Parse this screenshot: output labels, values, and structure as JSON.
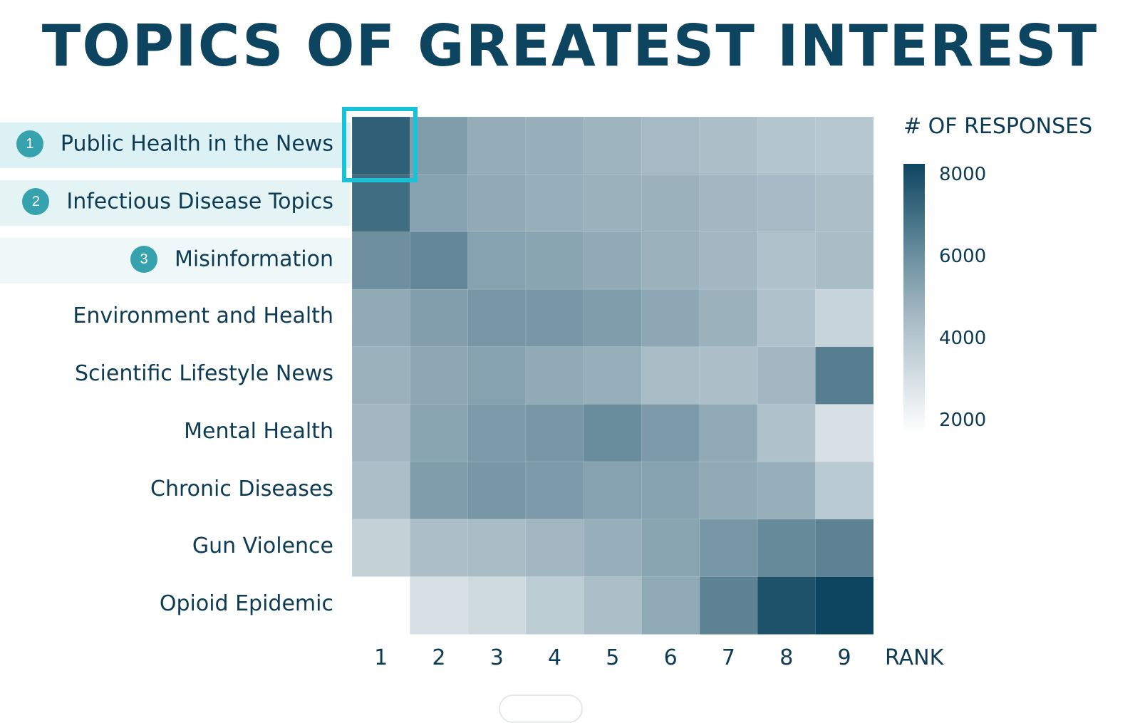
{
  "title": "TOPICS OF GREATEST INTEREST",
  "legend": {
    "title": "# OF RESPONSES",
    "ticks": [
      "8000",
      "6000",
      "4000",
      "2000"
    ],
    "range": [
      1500,
      8500
    ],
    "colors": [
      "#ffffff",
      "#0d4560"
    ]
  },
  "highlight_color": "#19c2d6",
  "badge_color": "#35a2ad",
  "band_colors": [
    "#dcf1f3",
    "#e4f4f5",
    "#eef8f9"
  ],
  "chart_data": {
    "type": "heatmap",
    "title": "TOPICS OF GREATEST INTEREST",
    "xlabel": "RANK",
    "ylabel": "",
    "colorbar_label": "# OF RESPONSES",
    "x": [
      "1",
      "2",
      "3",
      "4",
      "5",
      "6",
      "7",
      "8",
      "9"
    ],
    "y": [
      "Public Health in the News",
      "Infectious Disease Topics",
      "Misinformation",
      "Environment and Health",
      "Scientific Lifestyle News",
      "Mental Health",
      "Chronic Diseases",
      "Gun Violence",
      "Opioid Epidemic"
    ],
    "top_ranks": [
      "1",
      "2",
      "3"
    ],
    "values": [
      [
        7500,
        5200,
        4600,
        4500,
        4300,
        4100,
        3900,
        3700,
        3600
      ],
      [
        7000,
        5000,
        4700,
        4500,
        4400,
        4400,
        4200,
        4100,
        3900
      ],
      [
        5700,
        6000,
        5000,
        4900,
        4700,
        4400,
        4200,
        3800,
        4000
      ],
      [
        4700,
        5100,
        5400,
        5400,
        5200,
        4800,
        4400,
        3800,
        3100
      ],
      [
        4400,
        4800,
        5000,
        4700,
        4500,
        4000,
        3900,
        4200,
        6400
      ],
      [
        4200,
        4900,
        5300,
        5400,
        5800,
        5300,
        4700,
        3800,
        2700
      ],
      [
        3900,
        5200,
        5400,
        5300,
        5000,
        5000,
        4700,
        4500,
        3500
      ],
      [
        3200,
        3900,
        4000,
        4200,
        4500,
        4900,
        5400,
        5900,
        6200
      ],
      [
        1500,
        2700,
        2900,
        3400,
        3900,
        4700,
        6200,
        8000,
        8500
      ]
    ],
    "vmin": 1500,
    "vmax": 8500,
    "highlight_cell": [
      "Public Health in the News",
      "1"
    ]
  }
}
